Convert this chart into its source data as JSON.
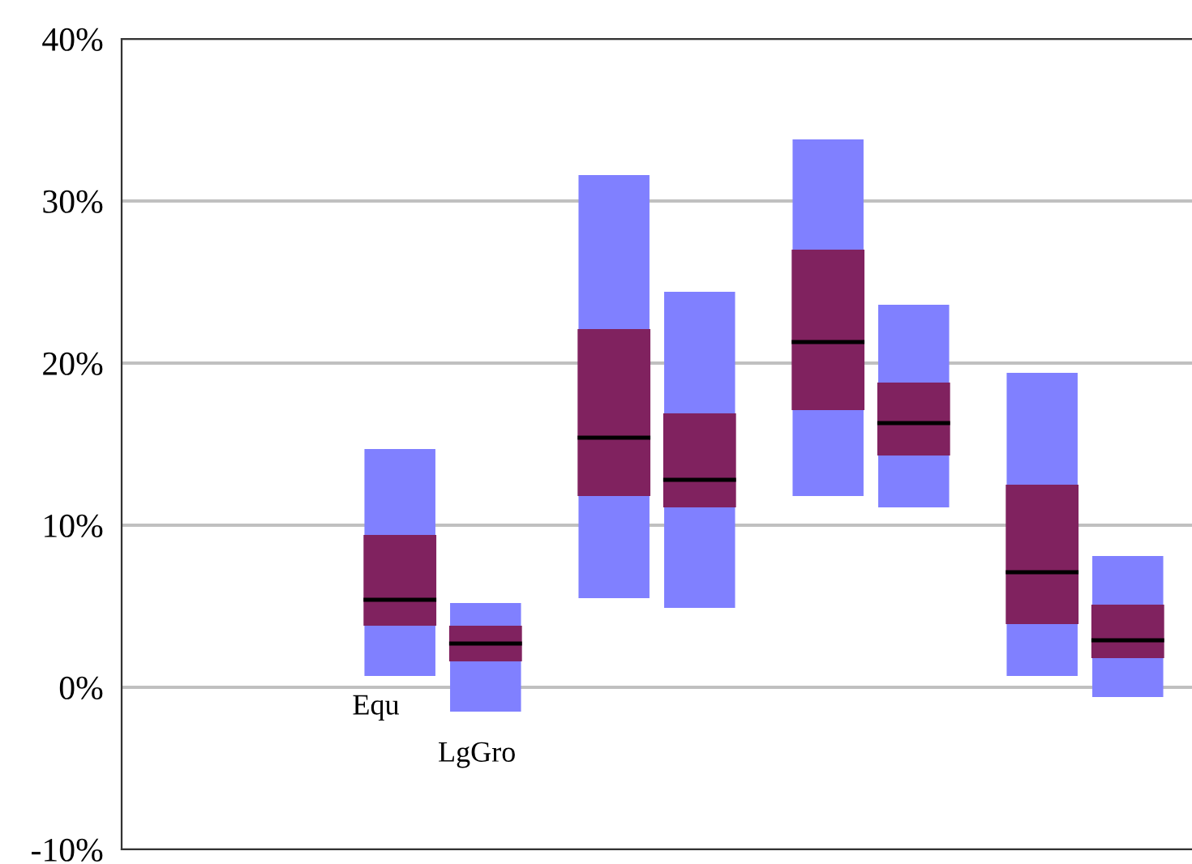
{
  "chart_data": {
    "type": "box",
    "categories": [
      null,
      null,
      "Equ",
      "LgGro",
      null,
      null,
      null,
      null,
      null,
      null
    ],
    "boxes": [
      null,
      null,
      {
        "low": 0.7,
        "q1": 3.8,
        "median": 5.4,
        "q3": 9.4,
        "high": 14.7
      },
      {
        "low": -1.5,
        "q1": 1.6,
        "median": 2.7,
        "q3": 3.8,
        "high": 5.2
      },
      {
        "low": 5.5,
        "q1": 11.8,
        "median": 15.4,
        "q3": 22.1,
        "high": 31.6
      },
      {
        "low": 4.9,
        "q1": 11.1,
        "median": 12.8,
        "q3": 16.9,
        "high": 24.4
      },
      {
        "low": 11.8,
        "q1": 17.1,
        "median": 21.3,
        "q3": 27.0,
        "high": 33.8
      },
      {
        "low": 11.1,
        "q1": 14.3,
        "median": 16.3,
        "q3": 18.8,
        "high": 23.6
      },
      {
        "low": 0.7,
        "q1": 3.9,
        "median": 7.1,
        "q3": 12.5,
        "high": 19.4
      },
      {
        "low": -0.6,
        "q1": 1.8,
        "median": 2.9,
        "q3": 5.1,
        "high": 8.1
      }
    ],
    "color": "#80225f",
    "ylim": [
      -10,
      40
    ],
    "yticks": [
      {
        "value": -10,
        "label": "-10%"
      },
      {
        "value": 0,
        "label": "0%"
      },
      {
        "value": 10,
        "label": "10%"
      },
      {
        "value": 20,
        "label": "20%"
      },
      {
        "value": 30,
        "label": "30%"
      },
      {
        "value": 40,
        "label": "40%"
      }
    ],
    "grid": "y"
  }
}
